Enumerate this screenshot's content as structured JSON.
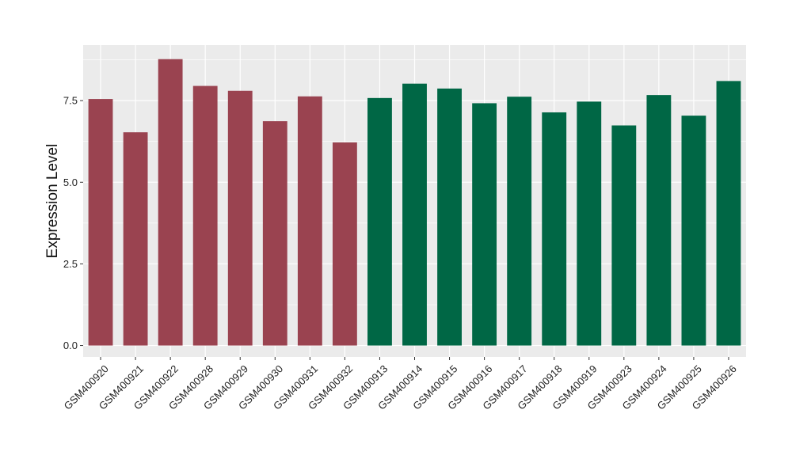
{
  "chart_data": {
    "type": "bar",
    "title": "",
    "xlabel": "",
    "ylabel": "Expression Level",
    "ylim": [
      -0.35,
      9.2
    ],
    "yticks": [
      0.0,
      2.5,
      5.0,
      7.5
    ],
    "ytick_labels": [
      "0.0",
      "2.5",
      "5.0",
      "7.5"
    ],
    "grid": true,
    "legend": "none",
    "categories": [
      "GSM400920",
      "GSM400921",
      "GSM400922",
      "GSM400928",
      "GSM400929",
      "GSM400930",
      "GSM400931",
      "GSM400932",
      "GSM400913",
      "GSM400914",
      "GSM400915",
      "GSM400916",
      "GSM400917",
      "GSM400918",
      "GSM400919",
      "GSM400923",
      "GSM400924",
      "GSM400925",
      "GSM400926"
    ],
    "values": [
      7.55,
      6.53,
      8.77,
      7.95,
      7.8,
      6.87,
      7.63,
      6.22,
      7.58,
      8.02,
      7.87,
      7.42,
      7.62,
      7.14,
      7.47,
      6.74,
      7.67,
      7.04,
      8.1
    ],
    "groups": [
      0,
      0,
      0,
      0,
      0,
      0,
      0,
      0,
      1,
      1,
      1,
      1,
      1,
      1,
      1,
      1,
      1,
      1,
      1
    ],
    "group_colors": [
      "#9a4350",
      "#006745"
    ],
    "panel_background": "#ebebeb",
    "grid_color": "#ffffff"
  }
}
